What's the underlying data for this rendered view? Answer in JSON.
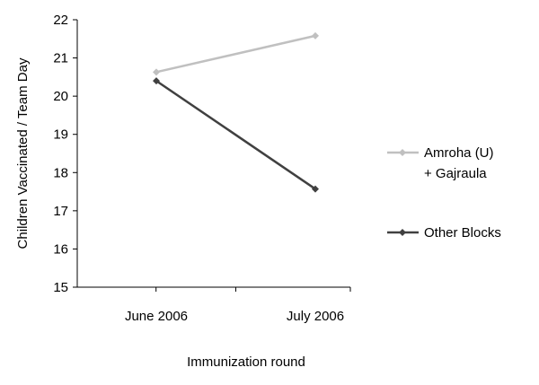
{
  "chart_data": {
    "type": "line",
    "categories": [
      "June 2006",
      "July 2006"
    ],
    "series": [
      {
        "name": "Amroha (U) + Gajraula",
        "name_lines": [
          "Amroha (U)",
          "+ Gajraula"
        ],
        "values": [
          20.63,
          21.58
        ],
        "color": "#c0c0c0"
      },
      {
        "name": "Other Blocks",
        "name_lines": [
          "Other Blocks"
        ],
        "values": [
          20.4,
          17.57
        ],
        "color": "#404040"
      }
    ],
    "title": "",
    "xlabel": "Immunization round",
    "ylabel": "Children Vaccinated / Team Day",
    "ylim": [
      15,
      22
    ],
    "yticks": [
      15,
      16,
      17,
      18,
      19,
      20,
      21,
      22
    ],
    "grid": false,
    "legend": "right"
  }
}
